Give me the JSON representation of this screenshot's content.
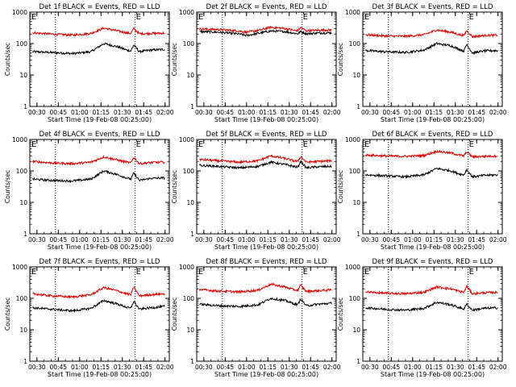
{
  "colors": {
    "events": "#000000",
    "lld": "#dd0000",
    "axis": "#000000"
  },
  "chart_data": [
    {
      "type": "line",
      "title": "Det 1f BLACK = Events, RED = LLD",
      "xlabel": "Start Time (19-Feb-08 00:25:00)",
      "ylabel": "Counts/sec",
      "x_ticks": [
        "00:30",
        "00:45",
        "01:00",
        "01:15",
        "01:30",
        "01:45",
        "02:00"
      ],
      "y_ticks": [
        "1",
        "10",
        "100",
        "1000"
      ],
      "yscale": "log",
      "ylim": [
        1,
        1000
      ],
      "xlim": [
        "00:25",
        "02:03"
      ],
      "markers": [
        {
          "x": "00:43",
          "label": ""
        },
        {
          "x": "01:39",
          "label": "E"
        }
      ],
      "start_marker": "E",
      "series": [
        {
          "name": "Events",
          "x": [
            "00:27",
            "00:40",
            "00:55",
            "01:08",
            "01:17",
            "01:27",
            "01:33",
            "01:36",
            "01:38",
            "01:42",
            "01:50",
            "02:00"
          ],
          "y": [
            55,
            52,
            48,
            55,
            100,
            78,
            62,
            58,
            90,
            55,
            62,
            65
          ]
        },
        {
          "name": "LLD",
          "x": [
            "00:27",
            "00:40",
            "00:55",
            "01:08",
            "01:17",
            "01:27",
            "01:33",
            "01:36",
            "01:38",
            "01:42",
            "01:50",
            "02:00"
          ],
          "y": [
            220,
            200,
            185,
            210,
            310,
            250,
            220,
            210,
            300,
            205,
            210,
            215
          ]
        }
      ]
    },
    {
      "type": "line",
      "title": "Det 2f BLACK = Events, RED = LLD",
      "xlabel": "Start Time (19-Feb-08 00:25:00)",
      "ylabel": "Counts/sec",
      "x_ticks": [
        "00:30",
        "00:45",
        "01:00",
        "01:15",
        "01:30",
        "01:45",
        "02:00"
      ],
      "y_ticks": [
        "1",
        "10",
        "100",
        "1000"
      ],
      "yscale": "log",
      "ylim": [
        1,
        1000
      ],
      "xlim": [
        "00:25",
        "02:03"
      ],
      "markers": [
        {
          "x": "00:43",
          "label": ""
        },
        {
          "x": "01:39",
          "label": "E"
        }
      ],
      "start_marker": "E",
      "series": [
        {
          "name": "Events",
          "x": [
            "00:27",
            "00:40",
            "00:55",
            "01:00",
            "01:08",
            "01:17",
            "01:27",
            "01:33",
            "01:36",
            "01:38",
            "01:42",
            "01:50",
            "02:00"
          ],
          "y": [
            240,
            230,
            200,
            180,
            210,
            250,
            240,
            215,
            205,
            240,
            205,
            215,
            220
          ]
        },
        {
          "name": "LLD",
          "x": [
            "00:27",
            "00:40",
            "00:55",
            "01:00",
            "01:08",
            "01:17",
            "01:27",
            "01:33",
            "01:36",
            "01:38",
            "01:42",
            "01:50",
            "02:00"
          ],
          "y": [
            290,
            280,
            250,
            230,
            260,
            330,
            300,
            265,
            255,
            320,
            255,
            265,
            270
          ]
        }
      ]
    },
    {
      "type": "line",
      "title": "Det 3f BLACK = Events, RED = LLD",
      "xlabel": "Start Time (19-Feb-08 00:25:00)",
      "ylabel": "Counts/sec",
      "x_ticks": [
        "00:30",
        "00:45",
        "01:00",
        "01:15",
        "01:30",
        "01:45",
        "02:00"
      ],
      "y_ticks": [
        "1",
        "10",
        "100",
        "1000"
      ],
      "yscale": "log",
      "ylim": [
        1,
        1000
      ],
      "xlim": [
        "00:25",
        "02:03"
      ],
      "markers": [
        {
          "x": "00:43",
          "label": ""
        },
        {
          "x": "01:39",
          "label": "E"
        }
      ],
      "start_marker": "E",
      "series": [
        {
          "name": "Events",
          "x": [
            "00:27",
            "00:40",
            "00:55",
            "01:08",
            "01:17",
            "01:27",
            "01:33",
            "01:36",
            "01:38",
            "01:42",
            "01:50",
            "02:00"
          ],
          "y": [
            60,
            55,
            52,
            62,
            100,
            85,
            65,
            58,
            95,
            50,
            58,
            60
          ]
        },
        {
          "name": "LLD",
          "x": [
            "00:27",
            "00:40",
            "00:55",
            "01:08",
            "01:17",
            "01:27",
            "01:33",
            "01:36",
            "01:38",
            "01:42",
            "01:50",
            "02:00"
          ],
          "y": [
            190,
            175,
            170,
            190,
            270,
            230,
            190,
            180,
            260,
            165,
            180,
            185
          ]
        }
      ]
    },
    {
      "type": "line",
      "title": "Det 4f BLACK = Events, RED = LLD",
      "xlabel": "Start Time (19-Feb-08 00:25:00)",
      "ylabel": "Counts/sec",
      "x_ticks": [
        "00:30",
        "00:45",
        "01:00",
        "01:15",
        "01:30",
        "01:45",
        "02:00"
      ],
      "y_ticks": [
        "1",
        "10",
        "100",
        "1000"
      ],
      "yscale": "log",
      "ylim": [
        1,
        1000
      ],
      "xlim": [
        "00:25",
        "02:03"
      ],
      "markers": [
        {
          "x": "00:43",
          "label": ""
        },
        {
          "x": "01:39",
          "label": "E"
        }
      ],
      "start_marker": "E",
      "series": [
        {
          "name": "Events",
          "x": [
            "00:27",
            "00:40",
            "00:55",
            "01:08",
            "01:17",
            "01:27",
            "01:33",
            "01:36",
            "01:38",
            "01:42",
            "01:50",
            "02:00"
          ],
          "y": [
            55,
            50,
            48,
            55,
            100,
            75,
            60,
            55,
            85,
            50,
            58,
            60
          ]
        },
        {
          "name": "LLD",
          "x": [
            "00:27",
            "00:40",
            "00:55",
            "01:08",
            "01:17",
            "01:27",
            "01:33",
            "01:36",
            "01:38",
            "01:42",
            "01:50",
            "02:00"
          ],
          "y": [
            200,
            180,
            170,
            190,
            280,
            220,
            190,
            180,
            270,
            170,
            185,
            190
          ]
        }
      ]
    },
    {
      "type": "line",
      "title": "Det 5f BLACK = Events, RED = LLD",
      "xlabel": "Start Time (19-Feb-08 00:25:00)",
      "ylabel": "Counts/sec",
      "x_ticks": [
        "00:30",
        "00:45",
        "01:00",
        "01:15",
        "01:30",
        "01:45",
        "02:00"
      ],
      "y_ticks": [
        "1",
        "10",
        "100",
        "1000"
      ],
      "yscale": "log",
      "ylim": [
        1,
        1000
      ],
      "xlim": [
        "00:25",
        "02:03"
      ],
      "markers": [
        {
          "x": "00:43",
          "label": ""
        },
        {
          "x": "01:39",
          "label": "E"
        }
      ],
      "start_marker": "E",
      "series": [
        {
          "name": "Events",
          "x": [
            "00:27",
            "00:40",
            "00:55",
            "01:08",
            "01:17",
            "01:27",
            "01:33",
            "01:36",
            "01:38",
            "01:42",
            "01:50",
            "02:00"
          ],
          "y": [
            150,
            140,
            125,
            140,
            190,
            160,
            140,
            130,
            200,
            125,
            135,
            140
          ]
        },
        {
          "name": "LLD",
          "x": [
            "00:27",
            "00:40",
            "00:55",
            "01:08",
            "01:17",
            "01:27",
            "01:33",
            "01:36",
            "01:38",
            "01:42",
            "01:50",
            "02:00"
          ],
          "y": [
            230,
            210,
            190,
            210,
            300,
            250,
            210,
            200,
            290,
            190,
            200,
            210
          ]
        }
      ]
    },
    {
      "type": "line",
      "title": "Det 6f BLACK = Events, RED = LLD",
      "xlabel": "Start Time (19-Feb-08 00:25:00)",
      "ylabel": "Counts/sec",
      "x_ticks": [
        "00:30",
        "00:45",
        "01:00",
        "01:15",
        "01:30",
        "01:45",
        "02:00"
      ],
      "y_ticks": [
        "1",
        "10",
        "100",
        "1000"
      ],
      "yscale": "log",
      "ylim": [
        1,
        1000
      ],
      "xlim": [
        "00:25",
        "02:03"
      ],
      "markers": [
        {
          "x": "00:43",
          "label": ""
        },
        {
          "x": "01:39",
          "label": "E"
        }
      ],
      "start_marker": "E",
      "series": [
        {
          "name": "Events",
          "x": [
            "00:27",
            "00:40",
            "00:55",
            "01:08",
            "01:17",
            "01:27",
            "01:33",
            "01:36",
            "01:38",
            "01:42",
            "01:50",
            "02:00"
          ],
          "y": [
            75,
            70,
            65,
            75,
            120,
            100,
            80,
            75,
            110,
            65,
            72,
            75
          ]
        },
        {
          "name": "LLD",
          "x": [
            "00:27",
            "00:40",
            "00:55",
            "01:08",
            "01:17",
            "01:27",
            "01:33",
            "01:36",
            "01:38",
            "01:42",
            "01:50",
            "02:00"
          ],
          "y": [
            320,
            300,
            290,
            310,
            420,
            370,
            320,
            300,
            410,
            280,
            290,
            300
          ]
        }
      ]
    },
    {
      "type": "line",
      "title": "Det 7f BLACK = Events, RED = LLD",
      "xlabel": "Start Time (19-Feb-08 00:25:00)",
      "ylabel": "Counts/sec",
      "x_ticks": [
        "00:30",
        "00:45",
        "01:00",
        "01:15",
        "01:30",
        "01:45",
        "02:00"
      ],
      "y_ticks": [
        "1",
        "10",
        "100",
        "1000"
      ],
      "yscale": "log",
      "ylim": [
        1,
        1000
      ],
      "xlim": [
        "00:25",
        "02:03"
      ],
      "markers": [
        {
          "x": "00:43",
          "label": ""
        },
        {
          "x": "01:39",
          "label": "E"
        }
      ],
      "start_marker": "E",
      "series": [
        {
          "name": "Events",
          "x": [
            "00:27",
            "00:40",
            "00:55",
            "01:08",
            "01:17",
            "01:27",
            "01:33",
            "01:36",
            "01:38",
            "01:42",
            "01:50",
            "02:00"
          ],
          "y": [
            50,
            45,
            40,
            48,
            85,
            65,
            52,
            48,
            80,
            45,
            50,
            55
          ]
        },
        {
          "name": "LLD",
          "x": [
            "00:27",
            "00:40",
            "00:55",
            "01:08",
            "01:17",
            "01:27",
            "01:33",
            "01:36",
            "01:38",
            "01:42",
            "01:50",
            "02:00"
          ],
          "y": [
            140,
            120,
            110,
            130,
            220,
            170,
            140,
            130,
            230,
            120,
            130,
            140
          ]
        }
      ]
    },
    {
      "type": "line",
      "title": "Det 8f BLACK = Events, RED = LLD",
      "xlabel": "Start Time (19-Feb-08 00:25:00)",
      "ylabel": "Counts/sec",
      "x_ticks": [
        "00:30",
        "00:45",
        "01:00",
        "01:15",
        "01:30",
        "01:45",
        "02:00"
      ],
      "y_ticks": [
        "1",
        "10",
        "100",
        "1000"
      ],
      "yscale": "log",
      "ylim": [
        1,
        1000
      ],
      "xlim": [
        "00:25",
        "02:03"
      ],
      "markers": [
        {
          "x": "00:43",
          "label": ""
        },
        {
          "x": "01:39",
          "label": "E"
        }
      ],
      "start_marker": "E",
      "series": [
        {
          "name": "Events",
          "x": [
            "00:27",
            "00:40",
            "00:55",
            "01:08",
            "01:17",
            "01:27",
            "01:33",
            "01:36",
            "01:38",
            "01:42",
            "01:50",
            "02:00"
          ],
          "y": [
            65,
            58,
            55,
            62,
            100,
            85,
            68,
            62,
            95,
            58,
            65,
            70
          ]
        },
        {
          "name": "LLD",
          "x": [
            "00:27",
            "00:40",
            "00:55",
            "01:08",
            "01:17",
            "01:27",
            "01:33",
            "01:36",
            "01:38",
            "01:42",
            "01:50",
            "02:00"
          ],
          "y": [
            190,
            170,
            160,
            180,
            280,
            230,
            190,
            180,
            260,
            165,
            175,
            185
          ]
        }
      ]
    },
    {
      "type": "line",
      "title": "Det 9f BLACK = Events, RED = LLD",
      "xlabel": "Start Time (19-Feb-08 00:25:00)",
      "ylabel": "Counts/sec",
      "x_ticks": [
        "00:30",
        "00:45",
        "01:00",
        "01:15",
        "01:30",
        "01:45",
        "02:00"
      ],
      "y_ticks": [
        "1",
        "10",
        "100",
        "1000"
      ],
      "yscale": "log",
      "ylim": [
        1,
        1000
      ],
      "xlim": [
        "00:25",
        "02:03"
      ],
      "markers": [
        {
          "x": "00:43",
          "label": ""
        },
        {
          "x": "01:39",
          "label": "E"
        }
      ],
      "start_marker": "E",
      "series": [
        {
          "name": "Events",
          "x": [
            "00:27",
            "00:40",
            "00:55",
            "01:08",
            "01:17",
            "01:27",
            "01:33",
            "01:36",
            "01:38",
            "01:42",
            "01:50",
            "02:00"
          ],
          "y": [
            50,
            45,
            42,
            48,
            75,
            62,
            50,
            46,
            65,
            42,
            48,
            50
          ]
        },
        {
          "name": "LLD",
          "x": [
            "00:27",
            "00:40",
            "00:55",
            "01:08",
            "01:17",
            "01:27",
            "01:33",
            "01:36",
            "01:38",
            "01:42",
            "01:50",
            "02:00"
          ],
          "y": [
            160,
            145,
            140,
            155,
            230,
            200,
            165,
            155,
            240,
            140,
            150,
            155
          ]
        }
      ]
    }
  ]
}
